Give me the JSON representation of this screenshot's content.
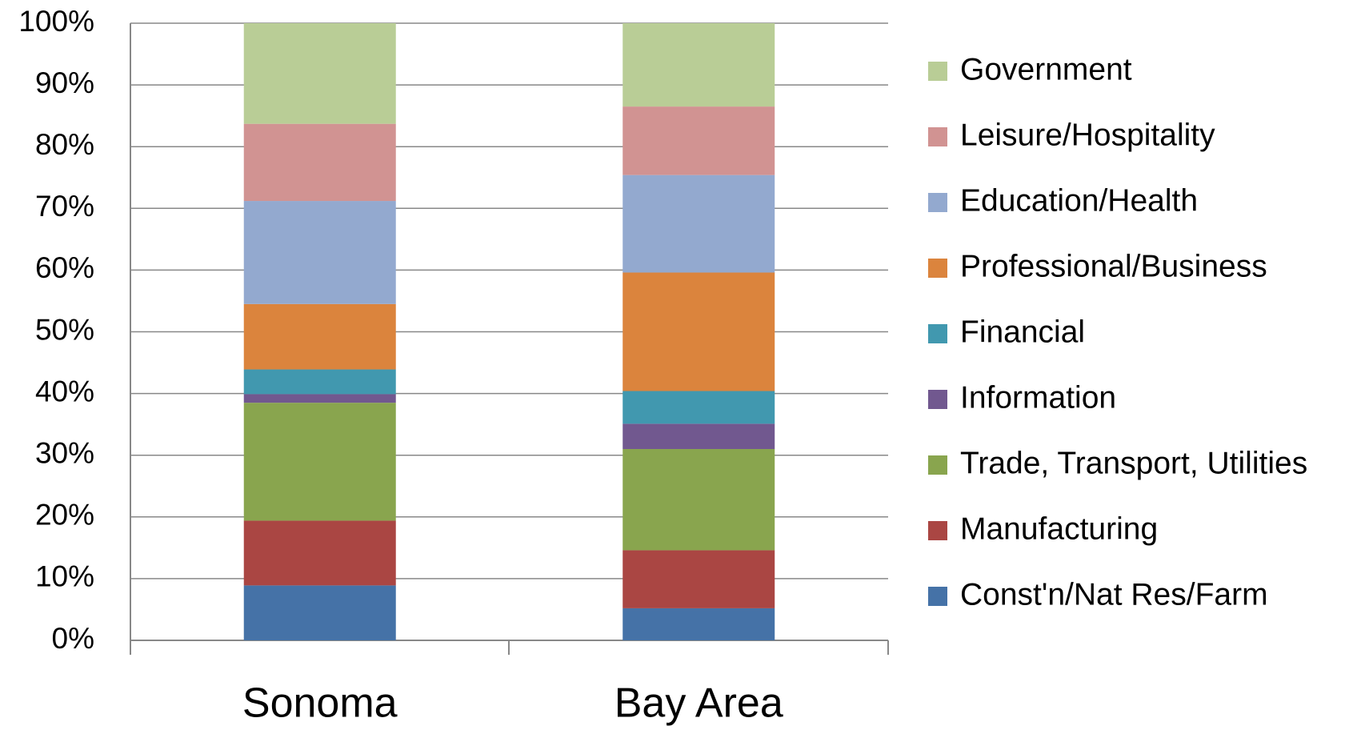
{
  "chart_data": {
    "type": "stacked_bar",
    "categories": [
      "Sonoma",
      "Bay Area"
    ],
    "series": [
      {
        "name": "Const'n/Nat Res/Farm",
        "color": "#4572a7",
        "values": [
          8.9,
          5.2
        ]
      },
      {
        "name": "Manufacturing",
        "color": "#aa4643",
        "values": [
          10.5,
          9.4
        ]
      },
      {
        "name": "Trade, Transport, Utilities",
        "color": "#89a54e",
        "values": [
          19.1,
          16.4
        ]
      },
      {
        "name": "Information",
        "color": "#71588f",
        "values": [
          1.4,
          4.1
        ]
      },
      {
        "name": "Financial",
        "color": "#4198af",
        "values": [
          4.0,
          5.3
        ]
      },
      {
        "name": "Professional/Business",
        "color": "#db843d",
        "values": [
          10.6,
          19.2
        ]
      },
      {
        "name": "Education/Health",
        "color": "#93a9cf",
        "values": [
          16.7,
          15.8
        ]
      },
      {
        "name": "Leisure/Hospitality",
        "color": "#d19392",
        "values": [
          12.5,
          11.1
        ]
      },
      {
        "name": "Government",
        "color": "#b9cd96",
        "values": [
          16.3,
          13.5
        ]
      }
    ],
    "ylim": [
      0,
      100
    ],
    "yticks": [
      {
        "value": 0,
        "label": "0%"
      },
      {
        "value": 10,
        "label": "10%"
      },
      {
        "value": 20,
        "label": "20%"
      },
      {
        "value": 30,
        "label": "30%"
      },
      {
        "value": 40,
        "label": "40%"
      },
      {
        "value": 50,
        "label": "50%"
      },
      {
        "value": 60,
        "label": "60%"
      },
      {
        "value": 70,
        "label": "70%"
      },
      {
        "value": 80,
        "label": "80%"
      },
      {
        "value": 90,
        "label": "90%"
      },
      {
        "value": 100,
        "label": "100%"
      }
    ],
    "grid": true,
    "legend": "right"
  }
}
